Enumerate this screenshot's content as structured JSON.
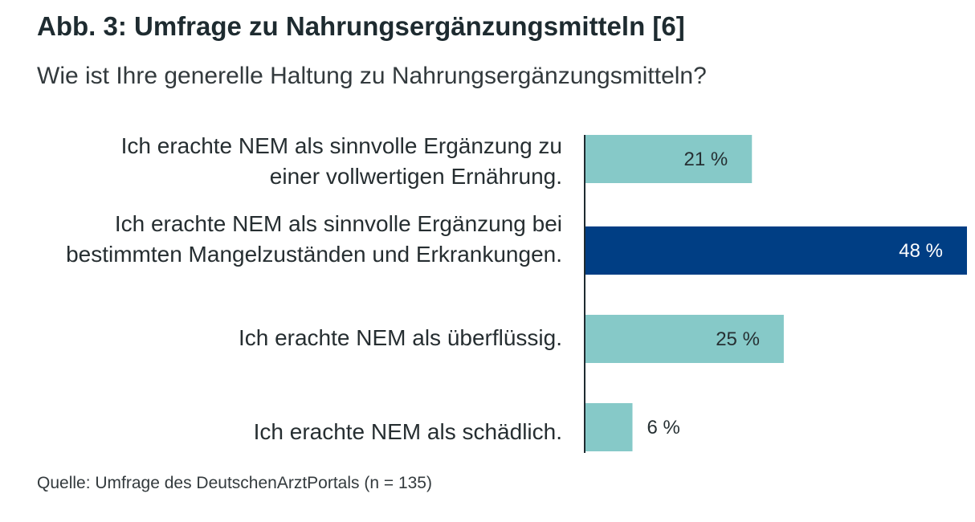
{
  "chart_data": {
    "type": "bar",
    "orientation": "horizontal",
    "title": "Abb. 3: Umfrage zu Nahrungsergänzungsmitteln [6]",
    "subtitle": "Wie ist Ihre generelle Haltung zu Nahrungsergänzungsmitteln?",
    "categories": [
      [
        "Ich erachte NEM als sinnvolle Ergänzung zu",
        "einer vollwertigen Ernährung."
      ],
      [
        "Ich erachte NEM als sinnvolle Ergänzung bei",
        "bestimmten Mangelzuständen und Erkrankungen."
      ],
      [
        "Ich erachte NEM als überflüssig."
      ],
      [
        "Ich erachte NEM als schädlich."
      ]
    ],
    "values": [
      21,
      48,
      25,
      6
    ],
    "value_labels": [
      "21 %",
      "48 %",
      "25 %",
      "6 %"
    ],
    "highlight_index": 1,
    "xlim": [
      0,
      48
    ],
    "source": "Quelle: Umfrage des DeutschenArztPortals (n = 135)",
    "colors": {
      "bar": "#86c9c8",
      "highlight": "#003e84",
      "axis": "#1e2b30",
      "label_dark": "#263033",
      "label_light": "#ffffff"
    }
  }
}
